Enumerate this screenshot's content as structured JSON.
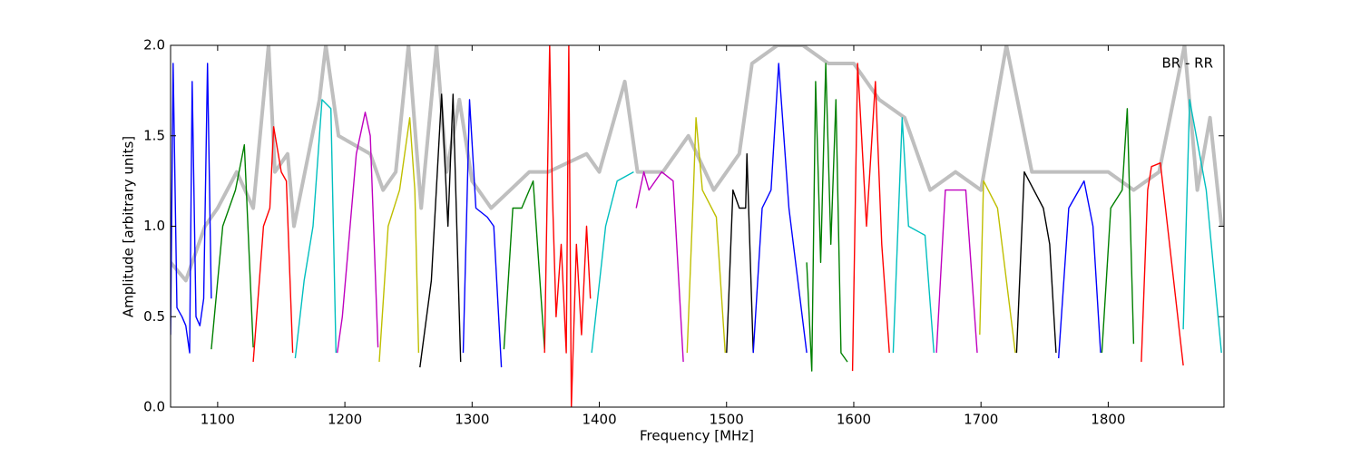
{
  "chart_data": {
    "type": "line",
    "xlabel": "Frequency [MHz]",
    "ylabel": "Amplitude [arbitrary units]",
    "annotation": "BR - RR",
    "xlim": [
      1063,
      1891
    ],
    "ylim": [
      0,
      2
    ],
    "xticks": [
      1100,
      1200,
      1300,
      1400,
      1500,
      1600,
      1700,
      1800
    ],
    "yticks": [
      {
        "value": 0,
        "label": "0.0"
      },
      0.5,
      {
        "value": 1,
        "label": "1.0"
      },
      1.5,
      {
        "value": 2,
        "label": "2.0"
      }
    ],
    "series": [
      {
        "color": "#bfbfbf",
        "x": [
          1063,
          1075,
          1090,
          1100,
          1115,
          1128,
          1140,
          1145,
          1155,
          1160,
          1180,
          1185,
          1195,
          1220,
          1230,
          1240,
          1250,
          1260,
          1272,
          1280,
          1290,
          1300,
          1315,
          1330,
          1345,
          1360,
          1390,
          1400,
          1420,
          1430,
          1450,
          1470,
          1490,
          1510,
          1520,
          1540,
          1560,
          1580,
          1600,
          1620,
          1640,
          1660,
          1680,
          1700,
          1720,
          1740,
          1760,
          1780,
          1800,
          1820,
          1840,
          1860,
          1870,
          1880,
          1889
        ],
        "values": [
          0.8,
          0.7,
          1.0,
          1.1,
          1.3,
          1.1,
          2.0,
          1.3,
          1.4,
          1.0,
          1.7,
          2.0,
          1.5,
          1.4,
          1.2,
          1.3,
          2.0,
          1.1,
          2.0,
          1.3,
          1.7,
          1.25,
          1.1,
          1.2,
          1.3,
          1.3,
          1.4,
          1.3,
          1.8,
          1.3,
          1.3,
          1.5,
          1.2,
          1.4,
          1.9,
          2.0,
          2.0,
          1.9,
          1.9,
          1.7,
          1.6,
          1.2,
          1.3,
          1.2,
          2.0,
          1.3,
          1.3,
          1.3,
          1.3,
          1.2,
          1.3,
          2.0,
          1.2,
          1.6,
          1.0
        ]
      },
      {
        "color": "#0000ff",
        "x": [
          1063,
          1065,
          1068,
          1072,
          1075,
          1078,
          1080,
          1083,
          1086,
          1089,
          1092,
          1095
        ],
        "values": [
          0.4,
          1.9,
          0.55,
          0.5,
          0.45,
          0.3,
          1.8,
          0.5,
          0.45,
          0.6,
          1.9,
          0.6
        ]
      },
      {
        "color": "#008000",
        "x": [
          1095,
          1104,
          1114,
          1121,
          1128
        ],
        "values": [
          0.32,
          1.0,
          1.2,
          1.45,
          0.33
        ]
      },
      {
        "color": "#ff0000",
        "x": [
          1128,
          1136,
          1141,
          1144,
          1150,
          1154,
          1159
        ],
        "values": [
          0.25,
          1.0,
          1.1,
          1.55,
          1.3,
          1.25,
          0.3
        ]
      },
      {
        "color": "#00bfbf",
        "x": [
          1161,
          1168,
          1175,
          1182,
          1189,
          1193
        ],
        "values": [
          0.27,
          0.7,
          1.0,
          1.7,
          1.65,
          0.3
        ]
      },
      {
        "color": "#bf00bf",
        "x": [
          1194,
          1198,
          1209,
          1216,
          1220,
          1226
        ],
        "values": [
          0.3,
          0.5,
          1.4,
          1.63,
          1.5,
          0.33
        ]
      },
      {
        "color": "#bfbf00",
        "x": [
          1227,
          1234,
          1243,
          1251,
          1255,
          1258
        ],
        "values": [
          0.25,
          1.0,
          1.2,
          1.6,
          1.2,
          0.3
        ]
      },
      {
        "color": "#000000",
        "x": [
          1259,
          1268,
          1276,
          1281,
          1285,
          1291
        ],
        "values": [
          0.22,
          0.7,
          1.73,
          1.0,
          1.73,
          0.25
        ]
      },
      {
        "color": "#0000ff",
        "x": [
          1293,
          1298,
          1303,
          1312,
          1317,
          1323
        ],
        "values": [
          0.3,
          1.7,
          1.1,
          1.05,
          1.0,
          0.22
        ]
      },
      {
        "color": "#008000",
        "x": [
          1325,
          1332,
          1339,
          1348,
          1357
        ],
        "values": [
          0.32,
          1.1,
          1.1,
          1.25,
          0.32
        ]
      },
      {
        "color": "#ff0000",
        "x": [
          1357,
          1361,
          1363,
          1366,
          1370,
          1374,
          1376,
          1378,
          1382,
          1386,
          1390,
          1393
        ],
        "values": [
          0.3,
          2.0,
          1.2,
          0.5,
          0.9,
          0.3,
          2.0,
          0.0,
          0.9,
          0.4,
          1.0,
          0.6
        ]
      },
      {
        "color": "#00bfbf",
        "x": [
          1394,
          1405,
          1414,
          1427
        ],
        "values": [
          0.3,
          1.0,
          1.25,
          1.3
        ]
      },
      {
        "color": "#bf00bf",
        "x": [
          1429,
          1435,
          1439,
          1449,
          1458,
          1466
        ],
        "values": [
          1.1,
          1.3,
          1.2,
          1.3,
          1.25,
          0.25
        ]
      },
      {
        "color": "#bfbf00",
        "x": [
          1469,
          1474,
          1476,
          1481,
          1492,
          1499
        ],
        "values": [
          0.3,
          1.2,
          1.6,
          1.2,
          1.05,
          0.3
        ]
      },
      {
        "color": "#000000",
        "x": [
          1500,
          1505,
          1510,
          1515,
          1516,
          1521
        ],
        "values": [
          0.3,
          1.2,
          1.1,
          1.1,
          1.4,
          0.3
        ]
      },
      {
        "color": "#0000ff",
        "x": [
          1521,
          1528,
          1535,
          1541,
          1549,
          1563
        ],
        "values": [
          0.3,
          1.1,
          1.2,
          1.9,
          1.1,
          0.3
        ]
      },
      {
        "color": "#008000",
        "x": [
          1563,
          1567,
          1570,
          1574,
          1578,
          1582,
          1586,
          1590,
          1595
        ],
        "values": [
          0.8,
          0.2,
          1.8,
          0.8,
          1.9,
          0.9,
          1.7,
          0.3,
          0.25
        ]
      },
      {
        "color": "#ff0000",
        "x": [
          1599,
          1603,
          1610,
          1617,
          1622,
          1628
        ],
        "values": [
          0.2,
          1.9,
          1.0,
          1.8,
          0.9,
          0.3
        ]
      },
      {
        "color": "#00bfbf",
        "x": [
          1631,
          1638,
          1643,
          1656,
          1663
        ],
        "values": [
          0.3,
          1.6,
          1.0,
          0.95,
          0.3
        ]
      },
      {
        "color": "#bf00bf",
        "x": [
          1665,
          1672,
          1688,
          1697
        ],
        "values": [
          0.3,
          1.2,
          1.2,
          0.3
        ]
      },
      {
        "color": "#bfbf00",
        "x": [
          1699,
          1702,
          1713,
          1727
        ],
        "values": [
          0.4,
          1.25,
          1.1,
          0.3
        ]
      },
      {
        "color": "#000000",
        "x": [
          1728,
          1734,
          1749,
          1754,
          1759
        ],
        "values": [
          0.3,
          1.3,
          1.1,
          0.9,
          0.3
        ]
      },
      {
        "color": "#0000ff",
        "x": [
          1761,
          1769,
          1781,
          1788,
          1794
        ],
        "values": [
          0.27,
          1.1,
          1.25,
          1.0,
          0.3
        ]
      },
      {
        "color": "#008000",
        "x": [
          1795,
          1802,
          1811,
          1815,
          1820
        ],
        "values": [
          0.3,
          1.1,
          1.2,
          1.65,
          0.35
        ]
      },
      {
        "color": "#ff0000",
        "x": [
          1826,
          1831,
          1834,
          1841,
          1859
        ],
        "values": [
          0.25,
          1.2,
          1.33,
          1.35,
          0.23
        ]
      },
      {
        "color": "#00bfbf",
        "x": [
          1859,
          1864,
          1877,
          1889
        ],
        "values": [
          0.43,
          1.7,
          1.2,
          0.3
        ]
      }
    ]
  }
}
